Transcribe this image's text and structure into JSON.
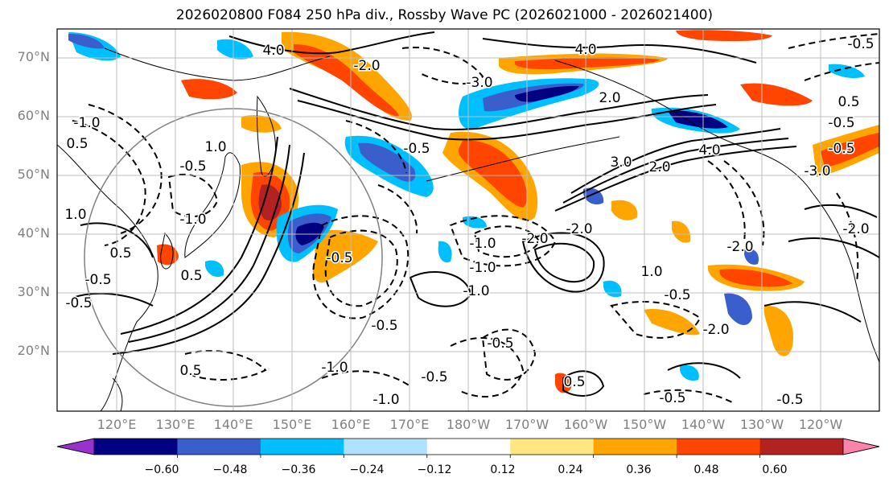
{
  "title": "2026020800 F084 250 hPa div., Rossby Wave PC (2026021000 - 2026021400)",
  "map": {
    "lat_labels": [
      "70°N",
      "60°N",
      "50°N",
      "40°N",
      "30°N",
      "20°N"
    ],
    "lon_labels": [
      "120°E",
      "130°E",
      "140°E",
      "150°E",
      "160°E",
      "170°E",
      "180°W",
      "170°W",
      "160°W",
      "150°W",
      "140°W",
      "130°W",
      "120°W"
    ],
    "contour_labels": [
      "4.0",
      "4.0",
      "2.0",
      "3.0",
      "-3.0",
      "-2.0",
      "2.0",
      "-0.5",
      "-1.0",
      "0.5",
      "1.0",
      "-0.5",
      "-0.5",
      "0.5",
      "-1.0",
      "-1.0",
      "-0.5",
      "-0.5",
      "0.5",
      "-2.0",
      "-2.0",
      "1.0",
      "-0.5",
      "-0.5",
      "-1.0",
      "-0.5",
      "-1.0",
      "0.5",
      "-0.5",
      "-0.5",
      "4.0",
      "-2.0",
      "-0.5",
      "-0.5",
      "0.5",
      "-0.5",
      "-3.0",
      "1.0",
      "-1.0",
      "-0.5",
      "0.5",
      "-1.0",
      "-2.0",
      "-2.0"
    ]
  },
  "colorbar": {
    "ticks": [
      "−0.60",
      "−0.48",
      "−0.36",
      "−0.24",
      "−0.12",
      "0.12",
      "0.24",
      "0.36",
      "0.48",
      "0.60"
    ],
    "colors": [
      "#9932cc",
      "#000080",
      "#3a5fcd",
      "#00bfff",
      "#b0e2ff",
      "#ffffff",
      "#ffe680",
      "#ffa500",
      "#ff4500",
      "#b22222",
      "#ff82ab"
    ]
  }
}
